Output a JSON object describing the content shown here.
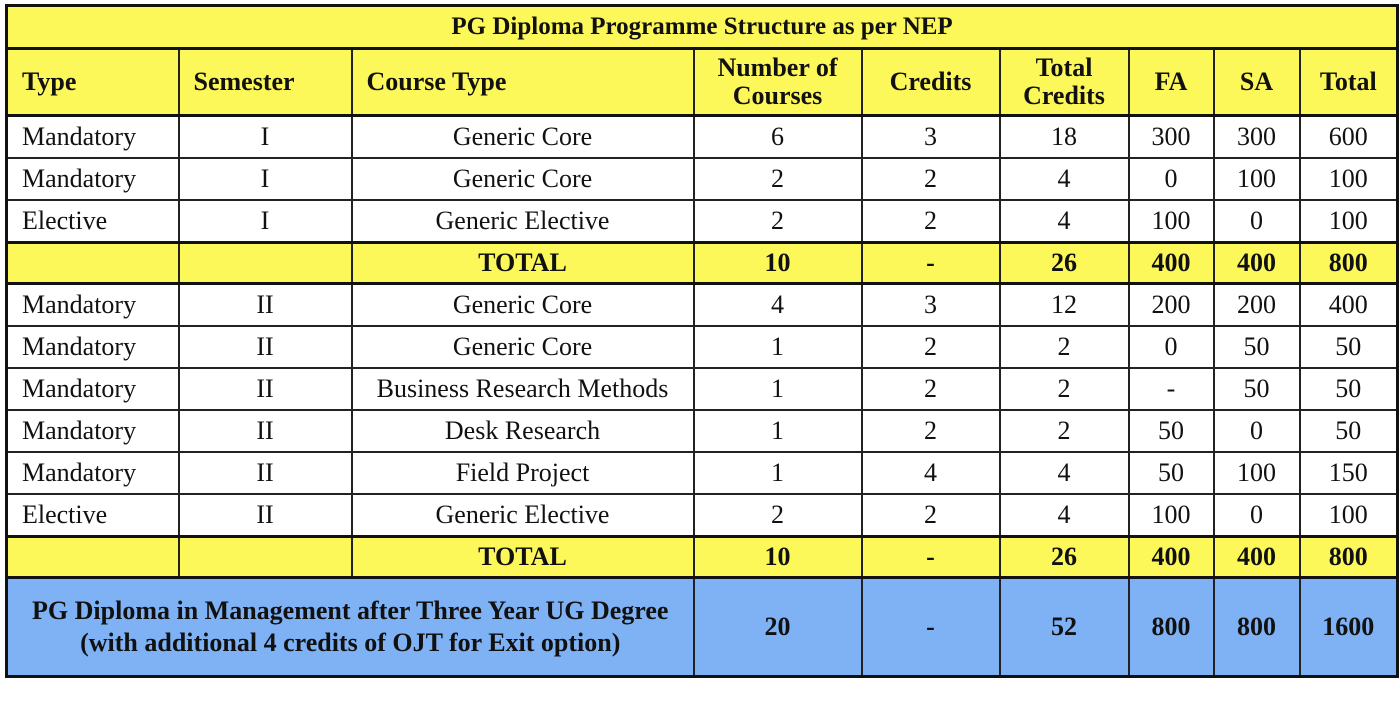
{
  "colors": {
    "header_bg": "#fdf859",
    "total_bg": "#fdf859",
    "grand_total_bg": "#7fb2f4",
    "border": "#222222"
  },
  "table": {
    "title": "PG Diploma Programme Structure as per NEP",
    "headers": [
      "Type",
      "Semester",
      "Course Type",
      "Number of Courses",
      "Credits",
      "Total Credits",
      "FA",
      "SA",
      "Total"
    ],
    "semester_1": {
      "rows": [
        [
          "Mandatory",
          "I",
          "Generic Core",
          "6",
          "3",
          "18",
          "300",
          "300",
          "600"
        ],
        [
          "Mandatory",
          "I",
          "Generic Core",
          "2",
          "2",
          "4",
          "0",
          "100",
          "100"
        ],
        [
          "Elective",
          "I",
          "Generic Elective",
          "2",
          "2",
          "4",
          "100",
          "0",
          "100"
        ]
      ],
      "total": [
        "",
        "",
        "TOTAL",
        "10",
        "-",
        "26",
        "400",
        "400",
        "800"
      ]
    },
    "semester_2": {
      "rows": [
        [
          "Mandatory",
          "II",
          "Generic Core",
          "4",
          "3",
          "12",
          "200",
          "200",
          "400"
        ],
        [
          "Mandatory",
          "II",
          "Generic Core",
          "1",
          "2",
          "2",
          "0",
          "50",
          "50"
        ],
        [
          "Mandatory",
          "II",
          "Business Research Methods",
          "1",
          "2",
          "2",
          "-",
          "50",
          "50"
        ],
        [
          "Mandatory",
          "II",
          "Desk Research",
          "1",
          "2",
          "2",
          "50",
          "0",
          "50"
        ],
        [
          "Mandatory",
          "II",
          "Field Project",
          "1",
          "4",
          "4",
          "50",
          "100",
          "150"
        ],
        [
          "Elective",
          "II",
          "Generic Elective",
          "2",
          "2",
          "4",
          "100",
          "0",
          "100"
        ]
      ],
      "total": [
        "",
        "",
        "TOTAL",
        "10",
        "-",
        "26",
        "400",
        "400",
        "800"
      ]
    },
    "grand_total": {
      "label": "PG Diploma in Management after Three Year UG Degree (with additional 4 credits of OJT for Exit option)",
      "values": [
        "20",
        "-",
        "52",
        "800",
        "800",
        "1600"
      ]
    }
  }
}
